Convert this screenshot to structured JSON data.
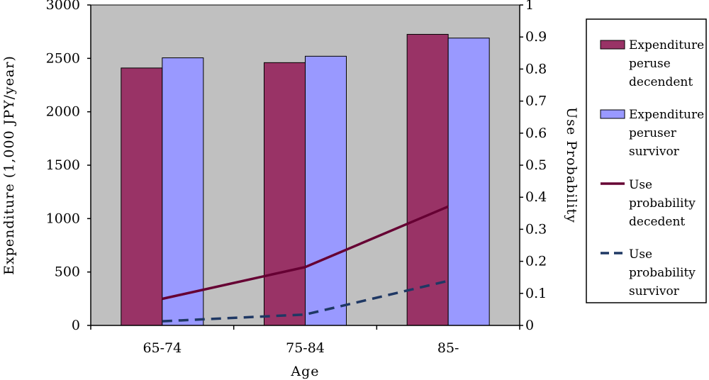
{
  "chart_data": {
    "type": "bar",
    "title": "",
    "xlabel": "Age",
    "ylabel": "Expenditure (1,000 JPY/year)",
    "y2label": "Use Probability",
    "categories": [
      "65-74",
      "75-84",
      "85-"
    ],
    "ylim": [
      0,
      3000
    ],
    "yticks": [
      0,
      500,
      1000,
      1500,
      2000,
      2500,
      3000
    ],
    "y2lim": [
      0,
      1
    ],
    "y2ticks": [
      "0",
      "0.1",
      "0.2",
      "0.3",
      "0.4",
      "0.5",
      "0.6",
      "0.7",
      "0.8",
      "0.9",
      "1"
    ],
    "grid": false,
    "legend_position": "right",
    "series": [
      {
        "name": "Expenditure peruse decendent",
        "legend_lines": [
          "Expenditure",
          "peruse",
          "decendent"
        ],
        "kind": "bar",
        "axis": "left",
        "values": [
          2410,
          2460,
          2725
        ],
        "color": "#993366"
      },
      {
        "name": "Expenditure peruser survivor",
        "legend_lines": [
          "Expenditure",
          "peruser",
          "survivor"
        ],
        "kind": "bar",
        "axis": "left",
        "values": [
          2505,
          2520,
          2690
        ],
        "color": "#9999ff"
      },
      {
        "name": "Use probability decedent",
        "legend_lines": [
          "Use",
          "probability",
          "decedent"
        ],
        "kind": "line",
        "style": "solid",
        "axis": "right",
        "values": [
          0.083,
          0.182,
          0.371
        ],
        "color": "#660033"
      },
      {
        "name": "Use probability survivor",
        "legend_lines": [
          "Use",
          "probability",
          "survivor"
        ],
        "kind": "line",
        "style": "dashed",
        "axis": "right",
        "values": [
          0.013,
          0.034,
          0.139
        ],
        "color": "#1f3864"
      }
    ],
    "plot_background": "#c0c0c0"
  }
}
